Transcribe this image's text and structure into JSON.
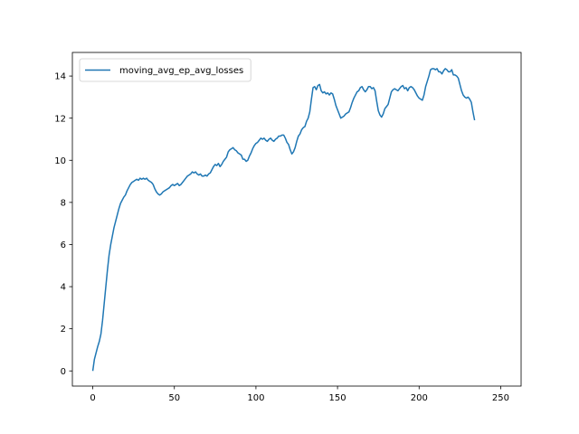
{
  "chart_data": {
    "type": "line",
    "title": "",
    "xlabel": "",
    "ylabel": "",
    "xlim": [
      -12.5,
      262.5
    ],
    "ylim": [
      -0.72,
      15.12
    ],
    "xticks": [
      0,
      50,
      100,
      150,
      200,
      250
    ],
    "yticks": [
      0,
      2,
      4,
      6,
      8,
      10,
      12,
      14
    ],
    "grid": false,
    "legend": {
      "placement": "top-left"
    },
    "series": [
      {
        "name": "moving_avg_ep_avg_losses",
        "color": "#1f77b4",
        "points": [
          [
            0,
            0.0
          ],
          [
            1,
            0.55
          ],
          [
            2,
            0.85
          ],
          [
            3,
            1.15
          ],
          [
            4,
            1.4
          ],
          [
            5,
            1.75
          ],
          [
            6,
            2.4
          ],
          [
            7,
            3.2
          ],
          [
            8,
            4.0
          ],
          [
            9,
            4.8
          ],
          [
            10,
            5.5
          ],
          [
            11,
            6.0
          ],
          [
            12,
            6.4
          ],
          [
            13,
            6.8
          ],
          [
            14,
            7.1
          ],
          [
            15,
            7.4
          ],
          [
            16,
            7.7
          ],
          [
            17,
            7.95
          ],
          [
            18,
            8.1
          ],
          [
            19,
            8.25
          ],
          [
            20,
            8.35
          ],
          [
            21,
            8.55
          ],
          [
            22,
            8.7
          ],
          [
            23,
            8.85
          ],
          [
            24,
            8.95
          ],
          [
            25,
            9.0
          ],
          [
            26,
            9.05
          ],
          [
            27,
            9.1
          ],
          [
            28,
            9.05
          ],
          [
            29,
            9.15
          ],
          [
            30,
            9.1
          ],
          [
            31,
            9.15
          ],
          [
            32,
            9.1
          ],
          [
            33,
            9.15
          ],
          [
            34,
            9.05
          ],
          [
            35,
            9.0
          ],
          [
            36,
            8.95
          ],
          [
            37,
            8.85
          ],
          [
            38,
            8.65
          ],
          [
            39,
            8.5
          ],
          [
            40,
            8.4
          ],
          [
            41,
            8.35
          ],
          [
            42,
            8.4
          ],
          [
            43,
            8.5
          ],
          [
            44,
            8.55
          ],
          [
            45,
            8.6
          ],
          [
            46,
            8.65
          ],
          [
            47,
            8.7
          ],
          [
            48,
            8.8
          ],
          [
            49,
            8.85
          ],
          [
            50,
            8.8
          ],
          [
            51,
            8.85
          ],
          [
            52,
            8.9
          ],
          [
            53,
            8.8
          ],
          [
            54,
            8.85
          ],
          [
            55,
            8.95
          ],
          [
            56,
            9.05
          ],
          [
            57,
            9.15
          ],
          [
            58,
            9.25
          ],
          [
            59,
            9.3
          ],
          [
            60,
            9.35
          ],
          [
            61,
            9.45
          ],
          [
            62,
            9.4
          ],
          [
            63,
            9.45
          ],
          [
            64,
            9.35
          ],
          [
            65,
            9.3
          ],
          [
            66,
            9.35
          ],
          [
            67,
            9.25
          ],
          [
            68,
            9.25
          ],
          [
            69,
            9.3
          ],
          [
            70,
            9.25
          ],
          [
            71,
            9.35
          ],
          [
            72,
            9.4
          ],
          [
            73,
            9.55
          ],
          [
            74,
            9.7
          ],
          [
            75,
            9.8
          ],
          [
            76,
            9.75
          ],
          [
            77,
            9.85
          ],
          [
            78,
            9.7
          ],
          [
            79,
            9.8
          ],
          [
            80,
            9.95
          ],
          [
            81,
            10.05
          ],
          [
            82,
            10.15
          ],
          [
            83,
            10.4
          ],
          [
            84,
            10.5
          ],
          [
            85,
            10.55
          ],
          [
            86,
            10.6
          ],
          [
            87,
            10.5
          ],
          [
            88,
            10.45
          ],
          [
            89,
            10.35
          ],
          [
            90,
            10.3
          ],
          [
            91,
            10.25
          ],
          [
            92,
            10.05
          ],
          [
            93,
            10.05
          ],
          [
            94,
            9.95
          ],
          [
            95,
            10.0
          ],
          [
            96,
            10.2
          ],
          [
            97,
            10.35
          ],
          [
            98,
            10.55
          ],
          [
            99,
            10.7
          ],
          [
            100,
            10.8
          ],
          [
            101,
            10.85
          ],
          [
            102,
            10.95
          ],
          [
            103,
            11.05
          ],
          [
            104,
            11.0
          ],
          [
            105,
            11.05
          ],
          [
            106,
            10.95
          ],
          [
            107,
            10.9
          ],
          [
            108,
            11.0
          ],
          [
            109,
            11.05
          ],
          [
            110,
            10.95
          ],
          [
            111,
            10.9
          ],
          [
            112,
            11.0
          ],
          [
            113,
            11.05
          ],
          [
            114,
            11.15
          ],
          [
            115,
            11.15
          ],
          [
            116,
            11.2
          ],
          [
            117,
            11.2
          ],
          [
            118,
            11.05
          ],
          [
            119,
            10.85
          ],
          [
            120,
            10.75
          ],
          [
            121,
            10.5
          ],
          [
            122,
            10.3
          ],
          [
            123,
            10.4
          ],
          [
            124,
            10.6
          ],
          [
            125,
            10.9
          ],
          [
            126,
            11.15
          ],
          [
            127,
            11.25
          ],
          [
            128,
            11.45
          ],
          [
            129,
            11.55
          ],
          [
            130,
            11.6
          ],
          [
            131,
            11.85
          ],
          [
            132,
            12.0
          ],
          [
            133,
            12.3
          ],
          [
            134,
            12.9
          ],
          [
            135,
            13.45
          ],
          [
            136,
            13.5
          ],
          [
            137,
            13.35
          ],
          [
            138,
            13.55
          ],
          [
            139,
            13.6
          ],
          [
            140,
            13.3
          ],
          [
            141,
            13.2
          ],
          [
            142,
            13.25
          ],
          [
            143,
            13.15
          ],
          [
            144,
            13.2
          ],
          [
            145,
            13.1
          ],
          [
            146,
            13.2
          ],
          [
            147,
            13.15
          ],
          [
            148,
            12.9
          ],
          [
            149,
            12.6
          ],
          [
            150,
            12.4
          ],
          [
            151,
            12.2
          ],
          [
            152,
            12.0
          ],
          [
            153,
            12.05
          ],
          [
            154,
            12.1
          ],
          [
            155,
            12.2
          ],
          [
            156,
            12.25
          ],
          [
            157,
            12.3
          ],
          [
            158,
            12.5
          ],
          [
            159,
            12.75
          ],
          [
            160,
            12.95
          ],
          [
            161,
            13.1
          ],
          [
            162,
            13.25
          ],
          [
            163,
            13.3
          ],
          [
            164,
            13.45
          ],
          [
            165,
            13.5
          ],
          [
            166,
            13.35
          ],
          [
            167,
            13.25
          ],
          [
            168,
            13.35
          ],
          [
            169,
            13.5
          ],
          [
            170,
            13.5
          ],
          [
            171,
            13.4
          ],
          [
            172,
            13.45
          ],
          [
            173,
            13.3
          ],
          [
            174,
            12.8
          ],
          [
            175,
            12.35
          ],
          [
            176,
            12.15
          ],
          [
            177,
            12.05
          ],
          [
            178,
            12.2
          ],
          [
            179,
            12.45
          ],
          [
            180,
            12.55
          ],
          [
            181,
            12.65
          ],
          [
            182,
            12.95
          ],
          [
            183,
            13.25
          ],
          [
            184,
            13.35
          ],
          [
            185,
            13.4
          ],
          [
            186,
            13.35
          ],
          [
            187,
            13.3
          ],
          [
            188,
            13.4
          ],
          [
            189,
            13.5
          ],
          [
            190,
            13.55
          ],
          [
            191,
            13.4
          ],
          [
            192,
            13.45
          ],
          [
            193,
            13.3
          ],
          [
            194,
            13.45
          ],
          [
            195,
            13.5
          ],
          [
            196,
            13.45
          ],
          [
            197,
            13.35
          ],
          [
            198,
            13.2
          ],
          [
            199,
            13.05
          ],
          [
            200,
            12.95
          ],
          [
            201,
            12.9
          ],
          [
            202,
            12.85
          ],
          [
            203,
            13.1
          ],
          [
            204,
            13.5
          ],
          [
            205,
            13.75
          ],
          [
            206,
            14.0
          ],
          [
            207,
            14.3
          ],
          [
            208,
            14.35
          ],
          [
            209,
            14.35
          ],
          [
            210,
            14.3
          ],
          [
            211,
            14.35
          ],
          [
            212,
            14.2
          ],
          [
            213,
            14.2
          ],
          [
            214,
            14.1
          ],
          [
            215,
            14.25
          ],
          [
            216,
            14.35
          ],
          [
            217,
            14.3
          ],
          [
            218,
            14.2
          ],
          [
            219,
            14.2
          ],
          [
            220,
            14.3
          ],
          [
            221,
            14.05
          ],
          [
            222,
            14.05
          ],
          [
            223,
            14.0
          ],
          [
            224,
            13.9
          ],
          [
            225,
            13.6
          ],
          [
            226,
            13.3
          ],
          [
            227,
            13.1
          ],
          [
            228,
            13.0
          ],
          [
            229,
            12.95
          ],
          [
            230,
            13.0
          ],
          [
            231,
            12.9
          ],
          [
            232,
            12.75
          ],
          [
            233,
            12.3
          ],
          [
            234,
            11.9
          ]
        ]
      }
    ]
  }
}
